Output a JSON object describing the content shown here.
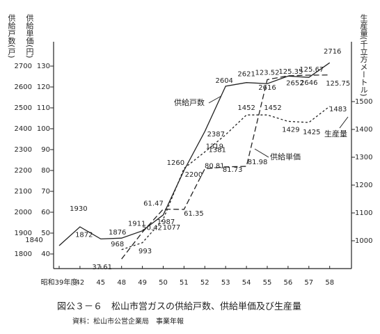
{
  "chart_data": {
    "type": "line",
    "title": "図公３－６　松山市営ガスの供給戸数、供給単価及び生産量",
    "subtitle": "資料：松山市公営企業局　事業年報",
    "y_label": "供給戸数(戸)",
    "y1b_label": "供給単価(円)",
    "y2_label": "生産量(千立方メートル)",
    "categories": [
      "昭和39年度",
      "42",
      "45",
      "48",
      "49",
      "50",
      "51",
      "52",
      "53",
      "54",
      "55",
      "56",
      "57",
      "58"
    ],
    "ylim": [
      1730,
      2730
    ],
    "yticks": [
      1800,
      1900,
      2000,
      2100,
      2200,
      2300,
      2400,
      2500,
      2600,
      2700
    ],
    "y1blim": [
      33,
      133
    ],
    "y1bticks": [
      40,
      50,
      60,
      70,
      80,
      90,
      100,
      110,
      120,
      130
    ],
    "y2lim": [
      900,
      1650
    ],
    "y2ticks": [
      1000,
      1100,
      1200,
      1300,
      1400,
      1500
    ],
    "series": [
      {
        "name": "供給戸数",
        "color": "#222222",
        "dash": "solid",
        "axis": "y",
        "values": [
          1840,
          1930,
          1872,
          1876,
          1911,
          1987,
          2200,
          2387,
          2604,
          2621,
          2616,
          2652,
          2646,
          2716
        ]
      },
      {
        "name": "供給単価",
        "color": "#222222",
        "dash": "long",
        "axis": "y1b",
        "values": [
          null,
          null,
          null,
          37.61,
          50.42,
          61.47,
          61.35,
          80.81,
          81.73,
          81.98,
          123.52,
          125.35,
          125.67,
          125.75
        ]
      },
      {
        "name": "生産量",
        "color": "#222222",
        "dash": "short",
        "axis": "y2",
        "values": [
          null,
          null,
          null,
          968,
          993,
          1077,
          1260,
          1319,
          1381,
          1452,
          1452,
          1429,
          1425,
          1483
        ]
      }
    ]
  }
}
